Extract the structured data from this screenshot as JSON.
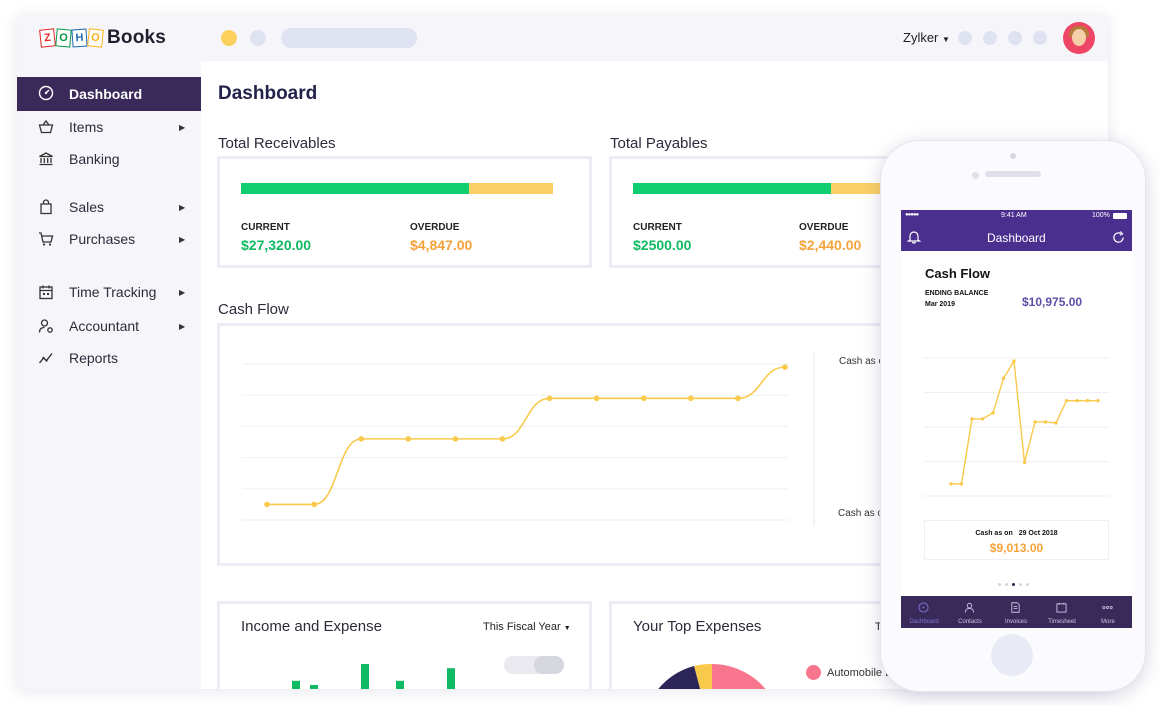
{
  "brand": {
    "letters": [
      "Z",
      "O",
      "H",
      "O"
    ],
    "letter_colors": [
      "#e42527",
      "#089949",
      "#226db4",
      "#f9b21d"
    ],
    "name": "Books"
  },
  "header": {
    "org_name": "Zylker"
  },
  "sidebar": {
    "items": [
      {
        "label": "Dashboard",
        "icon": "dashboard-icon",
        "active": true,
        "has_submenu": false
      },
      {
        "label": "Items",
        "icon": "basket-icon",
        "has_submenu": true
      },
      {
        "label": "Banking",
        "icon": "bank-icon",
        "has_submenu": false
      },
      {
        "label": "Sales",
        "icon": "shopping-bag-icon",
        "has_submenu": true
      },
      {
        "label": "Purchases",
        "icon": "cart-icon",
        "has_submenu": true
      },
      {
        "label": "Time Tracking",
        "icon": "calendar-icon",
        "has_submenu": true
      },
      {
        "label": "Accountant",
        "icon": "user-gear-icon",
        "has_submenu": true
      },
      {
        "label": "Reports",
        "icon": "chart-line-icon",
        "has_submenu": false
      }
    ]
  },
  "main": {
    "title": "Dashboard",
    "receivables": {
      "title": "Total Receivables",
      "current_label": "CURRENT",
      "current_value": "$27,320.00",
      "overdue_label": "OVERDUE",
      "overdue_value": "$4,847.00",
      "current_fraction": 0.73
    },
    "payables": {
      "title": "Total Payables",
      "current_label": "CURRENT",
      "current_value": "$2500.00",
      "overdue_label": "OVERDUE",
      "overdue_value": "$2,440.00",
      "current_fraction": 0.78
    },
    "cash_flow": {
      "title": "Cash Flow",
      "label_top": "Cash as o",
      "label_bottom": "Cash as o"
    },
    "income_expense": {
      "title": "Income and Expense",
      "period": "This Fiscal Year",
      "income_values": [
        3,
        6,
        5,
        3,
        10,
        6,
        2,
        2,
        9
      ],
      "expense_values": [
        0,
        0,
        0,
        0,
        0,
        0,
        0,
        0,
        0
      ]
    },
    "top_expenses": {
      "title": "Your Top Expenses",
      "period_partial": "T",
      "legend_first": "Automobile E"
    }
  },
  "chart_data": [
    {
      "type": "line",
      "title": "Cash Flow",
      "x": [
        1,
        2,
        3,
        4,
        5,
        6,
        7,
        8,
        9,
        10,
        11,
        12
      ],
      "values": [
        0.5,
        0.5,
        2.6,
        2.6,
        2.6,
        2.6,
        3.9,
        3.9,
        3.9,
        3.9,
        3.9,
        4.9
      ],
      "series_color": "#f9c94b",
      "grid": true
    },
    {
      "type": "line",
      "title": "Cash Flow",
      "x": [
        1,
        2,
        3,
        4,
        5,
        6,
        7,
        8,
        9,
        10,
        11,
        12,
        13,
        14,
        15
      ],
      "values": [
        1.2,
        1.2,
        7.6,
        7.6,
        8.2,
        11.6,
        13.3,
        3.3,
        7.3,
        7.3,
        7.2,
        9.4,
        9.4,
        9.4,
        9.4
      ],
      "series_color": "#f9c94b",
      "grid": true
    },
    {
      "type": "bar",
      "title": "Income and Expense",
      "x": [
        1,
        2,
        3,
        4,
        5,
        6,
        7,
        8,
        9
      ],
      "values": [
        3,
        6,
        5,
        3,
        10,
        6,
        2,
        2,
        9
      ],
      "series_color": "#0fba62"
    }
  ],
  "mobile": {
    "status_time": "9:41 AM",
    "status_battery": "100%",
    "header_title": "Dashboard",
    "cash_flow_title": "Cash Flow",
    "ending_balance_label": "ENDING BALANCE",
    "ending_balance_period": "Mar 2019",
    "ending_balance_value": "$10,975.00",
    "cash_as_on_label": "Cash as on",
    "cash_as_on_date": "29 Oct 2018",
    "cash_as_on_value": "$9,013.00",
    "tabs": [
      {
        "label": "Dashboard",
        "icon": "dashboard-icon",
        "active": true
      },
      {
        "label": "Contacts",
        "icon": "contacts-icon"
      },
      {
        "label": "Invoices",
        "icon": "invoice-icon"
      },
      {
        "label": "Timesheet",
        "icon": "calendar-icon"
      },
      {
        "label": "More",
        "icon": "more-icon"
      }
    ]
  }
}
